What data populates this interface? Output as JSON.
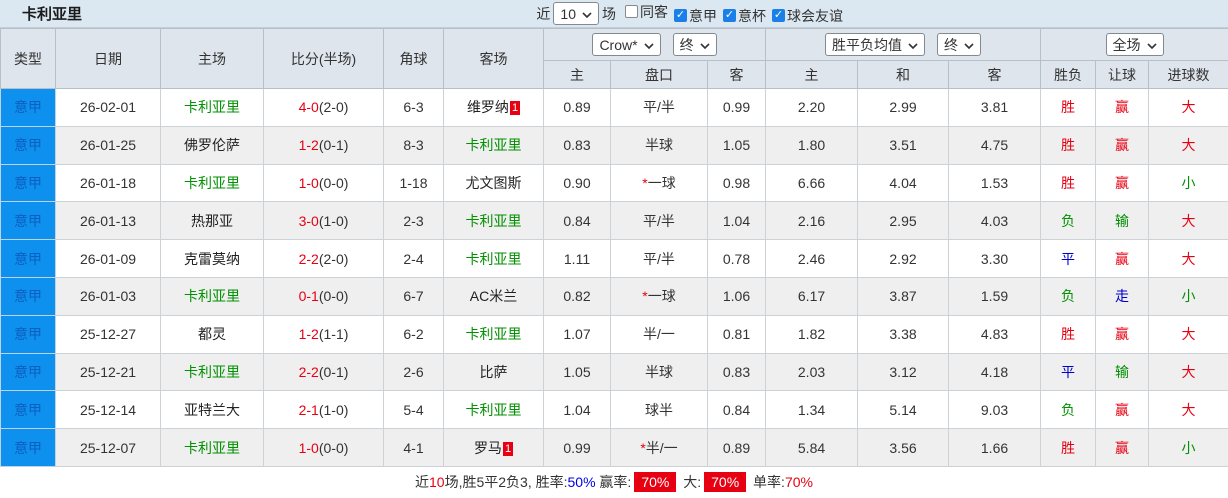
{
  "colors": {
    "topbar_bg": "#dce8f1",
    "header_bg": "#dfe5ec",
    "row_alt_bg": "#efefef",
    "league_bg": "#0e90ee",
    "league_text": "#0b5fc0",
    "team_green": "#009000",
    "score_red": "#e60012",
    "result_red": "#e60012",
    "result_green": "#009000",
    "result_blue": "#0000cc",
    "badge_bg": "#e60012",
    "checkbox_blue": "#1a80e8"
  },
  "topbar": {
    "title": "卡利亚里",
    "recent_label": "近",
    "matches_select": "10",
    "matches_label": "场",
    "filters": [
      {
        "label": "同客",
        "checked": false
      },
      {
        "label": "意甲",
        "checked": true
      },
      {
        "label": "意杯",
        "checked": true
      },
      {
        "label": "球会友谊",
        "checked": true
      }
    ]
  },
  "table": {
    "selects": {
      "company": "Crow*",
      "company_period": "终",
      "avg": "胜平负均值",
      "avg_period": "终",
      "scope": "全场"
    },
    "headers": {
      "type": "类型",
      "date": "日期",
      "home": "主场",
      "score": "比分(半场)",
      "corners": "角球",
      "away": "客场",
      "odds_home": "主",
      "handicap": "盘口",
      "odds_away": "客",
      "avg_home": "主",
      "avg_draw": "和",
      "avg_away": "客",
      "wdl": "胜负",
      "handicap_result": "让球",
      "goals": "进球数"
    },
    "rows": [
      {
        "league": "意甲",
        "date": "26-02-01",
        "home": {
          "text": "卡利亚里",
          "team": true
        },
        "score": "4-0",
        "half": "(2-0)",
        "corners": "6-3",
        "away": {
          "text": "维罗纳",
          "team": false,
          "badge": "1"
        },
        "odds_home": "0.89",
        "handicap": {
          "text": "平/半",
          "star": false
        },
        "odds_away": "0.99",
        "avg_home": "2.20",
        "avg_draw": "2.99",
        "avg_away": "3.81",
        "wdl": {
          "text": "胜",
          "color": "red"
        },
        "handicap_res": {
          "text": "赢",
          "color": "red"
        },
        "goals": {
          "text": "大",
          "color": "red"
        }
      },
      {
        "league": "意甲",
        "date": "26-01-25",
        "home": {
          "text": "佛罗伦萨",
          "team": false
        },
        "score": "1-2",
        "half": "(0-1)",
        "corners": "8-3",
        "away": {
          "text": "卡利亚里",
          "team": true
        },
        "odds_home": "0.83",
        "handicap": {
          "text": "半球",
          "star": false
        },
        "odds_away": "1.05",
        "avg_home": "1.80",
        "avg_draw": "3.51",
        "avg_away": "4.75",
        "wdl": {
          "text": "胜",
          "color": "red"
        },
        "handicap_res": {
          "text": "赢",
          "color": "red"
        },
        "goals": {
          "text": "大",
          "color": "red"
        }
      },
      {
        "league": "意甲",
        "date": "26-01-18",
        "home": {
          "text": "卡利亚里",
          "team": true
        },
        "score": "1-0",
        "half": "(0-0)",
        "corners": "1-18",
        "away": {
          "text": "尤文图斯",
          "team": false
        },
        "odds_home": "0.90",
        "handicap": {
          "text": "一球",
          "star": true
        },
        "odds_away": "0.98",
        "avg_home": "6.66",
        "avg_draw": "4.04",
        "avg_away": "1.53",
        "wdl": {
          "text": "胜",
          "color": "red"
        },
        "handicap_res": {
          "text": "赢",
          "color": "red"
        },
        "goals": {
          "text": "小",
          "color": "green"
        }
      },
      {
        "league": "意甲",
        "date": "26-01-13",
        "home": {
          "text": "热那亚",
          "team": false
        },
        "score": "3-0",
        "half": "(1-0)",
        "corners": "2-3",
        "away": {
          "text": "卡利亚里",
          "team": true
        },
        "odds_home": "0.84",
        "handicap": {
          "text": "平/半",
          "star": false
        },
        "odds_away": "1.04",
        "avg_home": "2.16",
        "avg_draw": "2.95",
        "avg_away": "4.03",
        "wdl": {
          "text": "负",
          "color": "green"
        },
        "handicap_res": {
          "text": "输",
          "color": "green"
        },
        "goals": {
          "text": "大",
          "color": "red"
        }
      },
      {
        "league": "意甲",
        "date": "26-01-09",
        "home": {
          "text": "克雷莫纳",
          "team": false
        },
        "score": "2-2",
        "half": "(2-0)",
        "corners": "2-4",
        "away": {
          "text": "卡利亚里",
          "team": true
        },
        "odds_home": "1.11",
        "handicap": {
          "text": "平/半",
          "star": false
        },
        "odds_away": "0.78",
        "avg_home": "2.46",
        "avg_draw": "2.92",
        "avg_away": "3.30",
        "wdl": {
          "text": "平",
          "color": "blue"
        },
        "handicap_res": {
          "text": "赢",
          "color": "red"
        },
        "goals": {
          "text": "大",
          "color": "red"
        }
      },
      {
        "league": "意甲",
        "date": "26-01-03",
        "home": {
          "text": "卡利亚里",
          "team": true
        },
        "score": "0-1",
        "half": "(0-0)",
        "corners": "6-7",
        "away": {
          "text": "AC米兰",
          "team": false
        },
        "odds_home": "0.82",
        "handicap": {
          "text": "一球",
          "star": true
        },
        "odds_away": "1.06",
        "avg_home": "6.17",
        "avg_draw": "3.87",
        "avg_away": "1.59",
        "wdl": {
          "text": "负",
          "color": "green"
        },
        "handicap_res": {
          "text": "走",
          "color": "blue"
        },
        "goals": {
          "text": "小",
          "color": "green"
        }
      },
      {
        "league": "意甲",
        "date": "25-12-27",
        "home": {
          "text": "都灵",
          "team": false
        },
        "score": "1-2",
        "half": "(1-1)",
        "corners": "6-2",
        "away": {
          "text": "卡利亚里",
          "team": true
        },
        "odds_home": "1.07",
        "handicap": {
          "text": "半/一",
          "star": false
        },
        "odds_away": "0.81",
        "avg_home": "1.82",
        "avg_draw": "3.38",
        "avg_away": "4.83",
        "wdl": {
          "text": "胜",
          "color": "red"
        },
        "handicap_res": {
          "text": "赢",
          "color": "red"
        },
        "goals": {
          "text": "大",
          "color": "red"
        }
      },
      {
        "league": "意甲",
        "date": "25-12-21",
        "home": {
          "text": "卡利亚里",
          "team": true
        },
        "score": "2-2",
        "half": "(0-1)",
        "corners": "2-6",
        "away": {
          "text": "比萨",
          "team": false
        },
        "odds_home": "1.05",
        "handicap": {
          "text": "半球",
          "star": false
        },
        "odds_away": "0.83",
        "avg_home": "2.03",
        "avg_draw": "3.12",
        "avg_away": "4.18",
        "wdl": {
          "text": "平",
          "color": "blue"
        },
        "handicap_res": {
          "text": "输",
          "color": "green"
        },
        "goals": {
          "text": "大",
          "color": "red"
        }
      },
      {
        "league": "意甲",
        "date": "25-12-14",
        "home": {
          "text": "亚特兰大",
          "team": false
        },
        "score": "2-1",
        "half": "(1-0)",
        "corners": "5-4",
        "away": {
          "text": "卡利亚里",
          "team": true
        },
        "odds_home": "1.04",
        "handicap": {
          "text": "球半",
          "star": false
        },
        "odds_away": "0.84",
        "avg_home": "1.34",
        "avg_draw": "5.14",
        "avg_away": "9.03",
        "wdl": {
          "text": "负",
          "color": "green"
        },
        "handicap_res": {
          "text": "赢",
          "color": "red"
        },
        "goals": {
          "text": "大",
          "color": "red"
        }
      },
      {
        "league": "意甲",
        "date": "25-12-07",
        "home": {
          "text": "卡利亚里",
          "team": true
        },
        "score": "1-0",
        "half": "(0-0)",
        "corners": "4-1",
        "away": {
          "text": "罗马",
          "team": false,
          "badge": "1"
        },
        "odds_home": "0.99",
        "handicap": {
          "text": "半/一",
          "star": true
        },
        "odds_away": "0.89",
        "avg_home": "5.84",
        "avg_draw": "3.56",
        "avg_away": "1.66",
        "wdl": {
          "text": "胜",
          "color": "red"
        },
        "handicap_res": {
          "text": "赢",
          "color": "red"
        },
        "goals": {
          "text": "小",
          "color": "green"
        }
      }
    ]
  },
  "footer": {
    "segments": [
      {
        "text": "近",
        "style": "plain"
      },
      {
        "text": "10",
        "style": "red"
      },
      {
        "text": "场,胜5平2负3, 胜率:",
        "style": "plain"
      },
      {
        "text": "50%",
        "style": "blue"
      },
      {
        "text": " 赢率:",
        "style": "plain"
      },
      {
        "text": "70%",
        "style": "badge"
      },
      {
        "text": " 大:",
        "style": "plain"
      },
      {
        "text": "70%",
        "style": "badge"
      },
      {
        "text": " 单率:",
        "style": "plain"
      },
      {
        "text": "70%",
        "style": "red"
      }
    ]
  }
}
